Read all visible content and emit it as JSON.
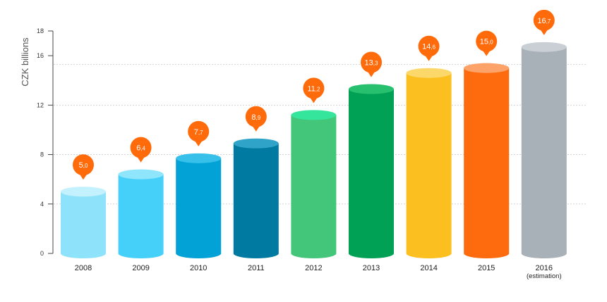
{
  "chart_data": {
    "type": "bar",
    "ylabel": "CZK billions",
    "ylim": [
      0,
      18
    ],
    "yticks": [
      "0",
      "4",
      "8",
      "12",
      "16",
      "18"
    ],
    "grid": true,
    "categories": [
      {
        "year": "2008",
        "sub": ""
      },
      {
        "year": "2009",
        "sub": ""
      },
      {
        "year": "2010",
        "sub": ""
      },
      {
        "year": "2011",
        "sub": ""
      },
      {
        "year": "2012",
        "sub": ""
      },
      {
        "year": "2013",
        "sub": ""
      },
      {
        "year": "2014",
        "sub": ""
      },
      {
        "year": "2015",
        "sub": ""
      },
      {
        "year": "2016",
        "sub": "(estimation)"
      }
    ],
    "values": [
      5.0,
      6.4,
      7.7,
      8.9,
      11.2,
      13.3,
      14.6,
      15.0,
      16.7
    ],
    "value_labels": [
      {
        "int": "5",
        "dec": ",0"
      },
      {
        "int": "6",
        "dec": ",4"
      },
      {
        "int": "7",
        "dec": ",7"
      },
      {
        "int": "8",
        "dec": ",9"
      },
      {
        "int": "11",
        "dec": ",2"
      },
      {
        "int": "13",
        "dec": ",3"
      },
      {
        "int": "14",
        "dec": ",6"
      },
      {
        "int": "15",
        "dec": ",0"
      },
      {
        "int": "16",
        "dec": ",7"
      }
    ],
    "colors": {
      "bars": [
        "#8ee3fb",
        "#45d0fa",
        "#02a2d6",
        "#007aa1",
        "#43c67a",
        "#00a155",
        "#fbc020",
        "#fd6b0e",
        "#a8b0b8"
      ],
      "tops": [
        "#c3f1fd",
        "#8fe5fc",
        "#36c0ea",
        "#2fa3c8",
        "#35e59c",
        "#27c06e",
        "#fcd86a",
        "#fda36a",
        "#c9cfd4"
      ],
      "badge": "#ff6b0b",
      "axis": "#444444",
      "grid": "#cccccc"
    }
  }
}
